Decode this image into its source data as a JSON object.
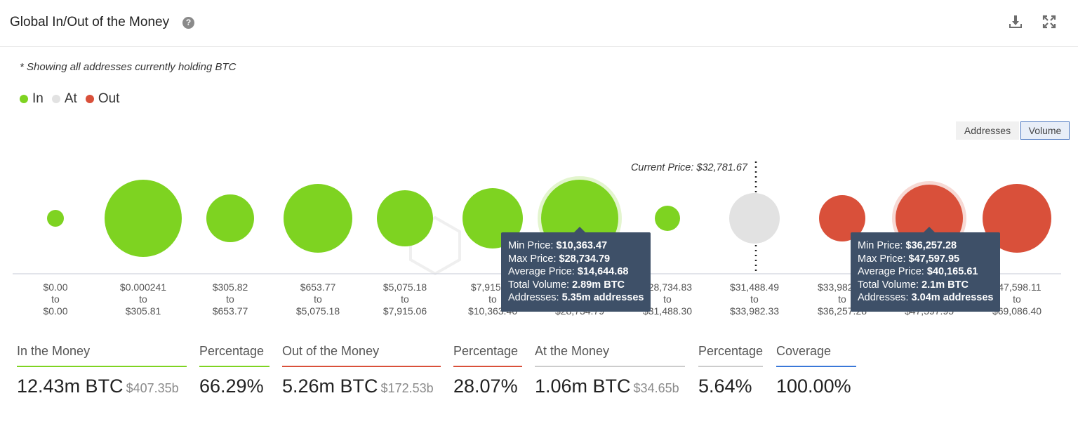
{
  "header": {
    "title": "Global In/Out of the Money",
    "help_icon": "question-circle-icon",
    "download_icon": "download-icon",
    "expand_icon": "expand-icon"
  },
  "note": "* Showing all addresses currently holding BTC",
  "legend": [
    {
      "label": "In",
      "color": "#7ed321"
    },
    {
      "label": "At",
      "color": "#e2e2e2"
    },
    {
      "label": "Out",
      "color": "#d9503a"
    }
  ],
  "toggle": {
    "addresses_label": "Addresses",
    "volume_label": "Volume",
    "active": "Volume"
  },
  "chart_data": {
    "type": "bubble",
    "current_price_label": "Current Price: $32,781.67",
    "current_price_index": 8,
    "colors": {
      "In": "#7ed321",
      "At": "#e2e2e2",
      "Out": "#d9503a"
    },
    "bins": [
      {
        "label": [
          "$0.00",
          "to",
          "$0.00"
        ],
        "status": "In"
      },
      {
        "label": [
          "$0.000241",
          "to",
          "$305.81"
        ],
        "status": "In"
      },
      {
        "label": [
          "$305.82",
          "to",
          "$653.77"
        ],
        "status": "In"
      },
      {
        "label": [
          "$653.77",
          "to",
          "$5,075.18"
        ],
        "status": "In"
      },
      {
        "label": [
          "$5,075.18",
          "to",
          "$7,915.06"
        ],
        "status": "In"
      },
      {
        "label": [
          "$7,915.06",
          "to",
          "$10,363.46"
        ],
        "status": "In"
      },
      {
        "label": [
          "$10,363.47",
          "to",
          "$28,734.79"
        ],
        "status": "In",
        "volume_btc_m": 2.89,
        "highlighted": true
      },
      {
        "label": [
          "$28,734.83",
          "to",
          "$31,488.30"
        ],
        "status": "In"
      },
      {
        "label": [
          "$31,488.49",
          "to",
          "$33,982.33"
        ],
        "status": "At"
      },
      {
        "label": [
          "$33,982.33",
          "to",
          "$36,257.28"
        ],
        "status": "Out"
      },
      {
        "label": [
          "$36,257.28",
          "to",
          "$47,597.95"
        ],
        "status": "Out",
        "volume_btc_m": 2.1,
        "highlighted": true
      },
      {
        "label": [
          "$47,598.11",
          "to",
          "$69,086.40"
        ],
        "status": "Out"
      }
    ],
    "tooltips": [
      {
        "bin_index": 6,
        "rows": [
          {
            "k": "Min Price:",
            "v": "$10,363.47"
          },
          {
            "k": "Max Price:",
            "v": "$28,734.79"
          },
          {
            "k": "Average Price:",
            "v": "$14,644.68"
          },
          {
            "k": "Total Volume:",
            "v": "2.89m BTC"
          },
          {
            "k": "Addresses:",
            "v": "5.35m addresses"
          }
        ]
      },
      {
        "bin_index": 10,
        "rows": [
          {
            "k": "Min Price:",
            "v": "$36,257.28"
          },
          {
            "k": "Max Price:",
            "v": "$47,597.95"
          },
          {
            "k": "Average Price:",
            "v": "$40,165.61"
          },
          {
            "k": "Total Volume:",
            "v": "2.1m BTC"
          },
          {
            "k": "Addresses:",
            "v": "3.04m addresses"
          }
        ]
      }
    ]
  },
  "stats": [
    {
      "label": "In the Money",
      "value": "12.43m BTC",
      "sub": "$407.35b",
      "color": "#7ed321"
    },
    {
      "label": "Percentage",
      "value": "66.29%",
      "sub": "",
      "color": "#7ed321"
    },
    {
      "label": "Out of the Money",
      "value": "5.26m BTC",
      "sub": "$172.53b",
      "color": "#d9503a"
    },
    {
      "label": "Percentage",
      "value": "28.07%",
      "sub": "",
      "color": "#d9503a"
    },
    {
      "label": "At the Money",
      "value": "1.06m BTC",
      "sub": "$34.65b",
      "color": "#cccccc"
    },
    {
      "label": "Percentage",
      "value": "5.64%",
      "sub": "",
      "color": "#cccccc"
    },
    {
      "label": "Coverage",
      "value": "100.00%",
      "sub": "",
      "color": "#3a78d8"
    }
  ]
}
